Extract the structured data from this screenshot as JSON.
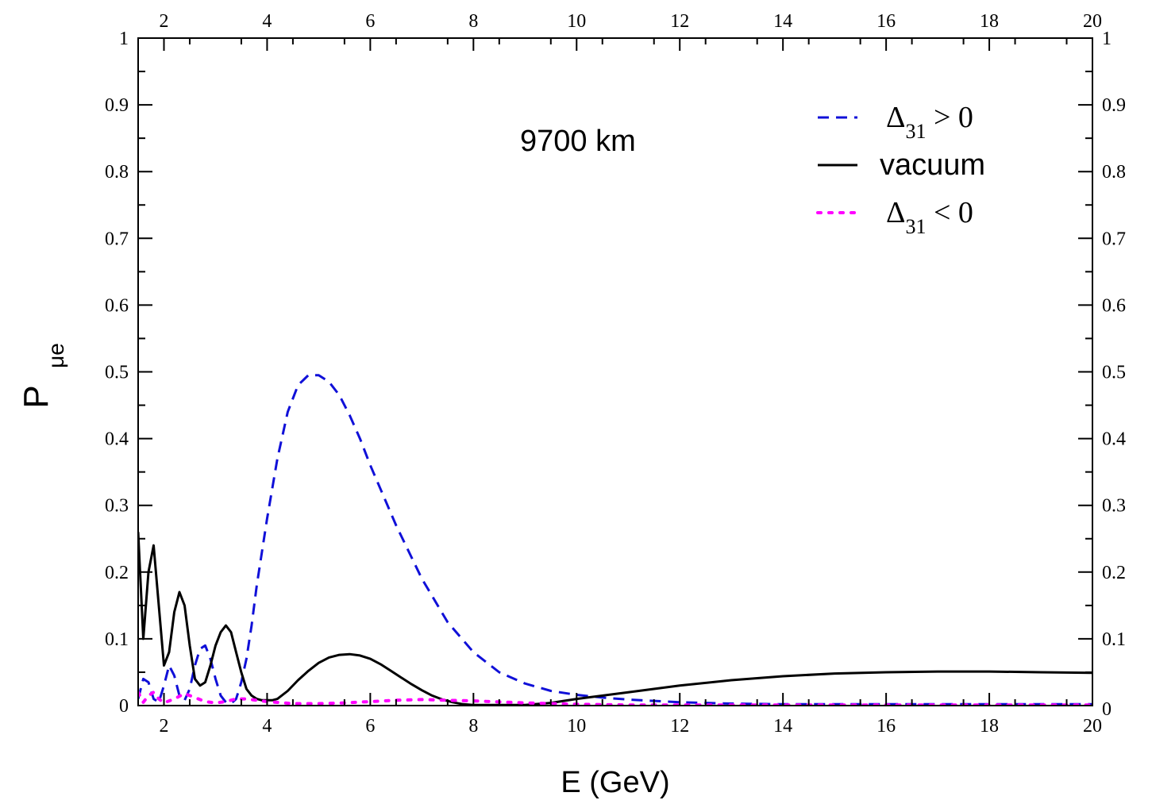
{
  "chart_data": {
    "type": "line",
    "xlabel": "E (GeV)",
    "ylabel": "P",
    "ylabel_sub": "μe",
    "xlim": [
      1.5,
      20
    ],
    "ylim": [
      0,
      1
    ],
    "x_ticks": [
      2,
      4,
      6,
      8,
      10,
      12,
      14,
      16,
      18,
      20
    ],
    "x_tick_labels": [
      "2",
      "4",
      "6",
      "8",
      "10",
      "12",
      "14",
      "16",
      "18",
      "20"
    ],
    "y_ticks": [
      0,
      0.1,
      0.2,
      0.3,
      0.4,
      0.5,
      0.6,
      0.7,
      0.8,
      0.9,
      1
    ],
    "y_tick_labels": [
      "0",
      "0.1",
      "0.2",
      "0.3",
      "0.4",
      "0.5",
      "0.6",
      "0.7",
      "0.8",
      "0.9",
      "1"
    ],
    "grid": false,
    "annotation": "9700 km",
    "legend": {
      "placement": "top-right",
      "entries": [
        {
          "symbol": "Δ",
          "sub": "31",
          "relation": " > 0",
          "series": 0
        },
        {
          "label": "vacuum",
          "series": 1
        },
        {
          "symbol": "Δ",
          "sub": "31",
          "relation": " < 0",
          "series": 2
        }
      ]
    },
    "series": [
      {
        "color": "#1010d8",
        "dash": "dashed",
        "x": [
          1.5,
          1.6,
          1.7,
          1.8,
          1.9,
          2.0,
          2.1,
          2.2,
          2.3,
          2.4,
          2.5,
          2.6,
          2.7,
          2.8,
          2.9,
          3.0,
          3.1,
          3.2,
          3.3,
          3.4,
          3.5,
          3.6,
          3.7,
          3.8,
          4.0,
          4.2,
          4.4,
          4.6,
          4.8,
          5.0,
          5.2,
          5.4,
          5.6,
          5.8,
          6.0,
          6.5,
          7.0,
          7.5,
          8.0,
          8.5,
          9.0,
          9.5,
          10.0,
          10.5,
          11.0,
          12.0,
          13.0,
          14.0,
          15.0,
          16.0,
          17.0,
          18.0,
          19.0,
          20.0
        ],
        "y": [
          0.01,
          0.04,
          0.035,
          0.01,
          0.005,
          0.03,
          0.06,
          0.045,
          0.015,
          0.008,
          0.025,
          0.06,
          0.085,
          0.09,
          0.07,
          0.04,
          0.015,
          0.005,
          0.003,
          0.01,
          0.035,
          0.07,
          0.12,
          0.18,
          0.28,
          0.37,
          0.44,
          0.48,
          0.495,
          0.495,
          0.485,
          0.465,
          0.435,
          0.4,
          0.36,
          0.27,
          0.19,
          0.125,
          0.08,
          0.05,
          0.033,
          0.022,
          0.016,
          0.012,
          0.009,
          0.005,
          0.003,
          0.002,
          0.002,
          0.002,
          0.002,
          0.002,
          0.002,
          0.002
        ]
      },
      {
        "color": "#000000",
        "dash": "solid",
        "x": [
          1.5,
          1.6,
          1.7,
          1.8,
          1.9,
          2.0,
          2.1,
          2.2,
          2.3,
          2.4,
          2.5,
          2.6,
          2.7,
          2.8,
          2.9,
          3.0,
          3.1,
          3.2,
          3.3,
          3.4,
          3.5,
          3.6,
          3.7,
          3.8,
          3.9,
          4.0,
          4.1,
          4.2,
          4.4,
          4.6,
          4.8,
          5.0,
          5.2,
          5.4,
          5.6,
          5.8,
          6.0,
          6.2,
          6.4,
          6.6,
          6.8,
          7.0,
          7.2,
          7.4,
          7.6,
          7.8,
          8.0,
          8.5,
          9.0,
          9.5,
          10.0,
          11.0,
          12.0,
          13.0,
          14.0,
          15.0,
          16.0,
          17.0,
          18.0,
          19.0,
          20.0
        ],
        "y": [
          0.26,
          0.1,
          0.2,
          0.24,
          0.15,
          0.06,
          0.08,
          0.14,
          0.17,
          0.15,
          0.09,
          0.04,
          0.03,
          0.035,
          0.06,
          0.09,
          0.11,
          0.12,
          0.11,
          0.08,
          0.05,
          0.025,
          0.015,
          0.01,
          0.008,
          0.008,
          0.008,
          0.01,
          0.022,
          0.038,
          0.052,
          0.064,
          0.072,
          0.076,
          0.077,
          0.075,
          0.07,
          0.062,
          0.052,
          0.042,
          0.032,
          0.023,
          0.015,
          0.009,
          0.005,
          0.002,
          0.001,
          0.001,
          0.001,
          0.004,
          0.01,
          0.02,
          0.03,
          0.038,
          0.044,
          0.048,
          0.05,
          0.051,
          0.051,
          0.05,
          0.049
        ]
      },
      {
        "color": "#ff00ff",
        "dash": "dotted",
        "x": [
          1.5,
          1.6,
          1.7,
          1.8,
          1.9,
          2.0,
          2.2,
          2.4,
          2.6,
          2.8,
          3.0,
          3.2,
          3.4,
          3.6,
          3.8,
          4.0,
          4.5,
          5.0,
          5.5,
          6.0,
          6.5,
          7.0,
          7.5,
          8.0,
          9.0,
          10.0,
          11.0,
          12.0,
          14.0,
          16.0,
          18.0,
          20.0
        ],
        "y": [
          0.02,
          0.005,
          0.015,
          0.02,
          0.01,
          0.004,
          0.01,
          0.018,
          0.012,
          0.006,
          0.004,
          0.006,
          0.01,
          0.01,
          0.008,
          0.006,
          0.003,
          0.003,
          0.004,
          0.006,
          0.008,
          0.009,
          0.008,
          0.007,
          0.004,
          0.002,
          0.001,
          0.001,
          0.001,
          0.001,
          0.001,
          0.001
        ]
      }
    ]
  }
}
